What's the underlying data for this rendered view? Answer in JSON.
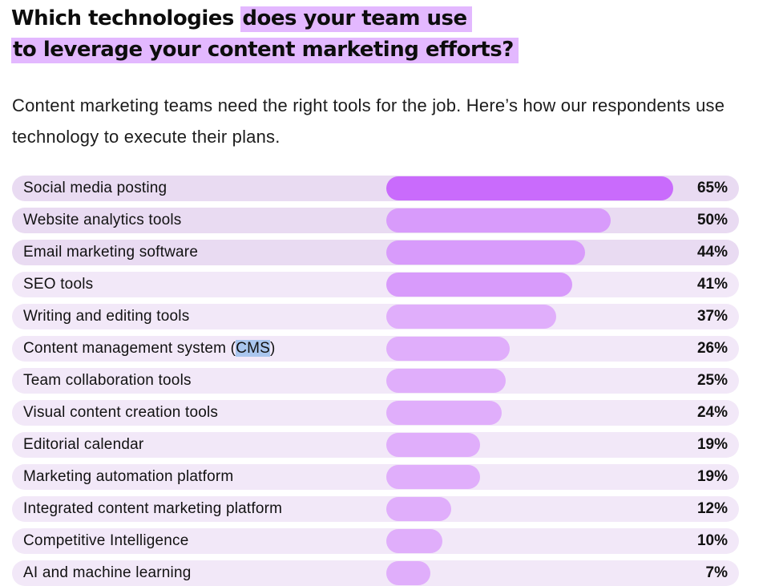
{
  "page": {
    "title_line1_plain": "Which technologies ",
    "title_line1_highlight": "does your team use",
    "title_line2_highlight": "to leverage your content marketing efforts?",
    "subtitle": "Content marketing teams need the right tools for the job. Here’s how our respondents use technology to execute their plans."
  },
  "colors": {
    "highlight": "#e3b8ff",
    "row_bg_light": "#f2e8f8",
    "row_bg_alt": "#e9dbf2",
    "bar_top": "#c96bfc",
    "bar_high": "#d89bfb",
    "bar_mid": "#e0aefb",
    "text_selection": "#aac6ee"
  },
  "chart_data": {
    "type": "bar",
    "orientation": "horizontal",
    "unit": "%",
    "xlim": [
      0,
      65
    ],
    "categories": [
      "Social media posting",
      "Website analytics tools",
      "Email marketing software",
      "SEO tools",
      "Writing and editing tools",
      "Content management system (CMS)",
      "Team collaboration tools",
      "Visual content creation tools",
      "Editorial calendar",
      "Marketing automation platform",
      "Integrated content marketing platform",
      "Competitive Intelligence",
      "AI and machine learning"
    ],
    "values": [
      65,
      50,
      44,
      41,
      37,
      26,
      25,
      24,
      19,
      19,
      12,
      10,
      7
    ],
    "value_labels": [
      "65%",
      "50%",
      "44%",
      "41%",
      "37%",
      "26%",
      "25%",
      "24%",
      "19%",
      "19%",
      "12%",
      "10%",
      "7%"
    ],
    "text_selection": {
      "row_index": 5,
      "before": "Content management system (",
      "selected": "CMS",
      "after": ")"
    }
  }
}
